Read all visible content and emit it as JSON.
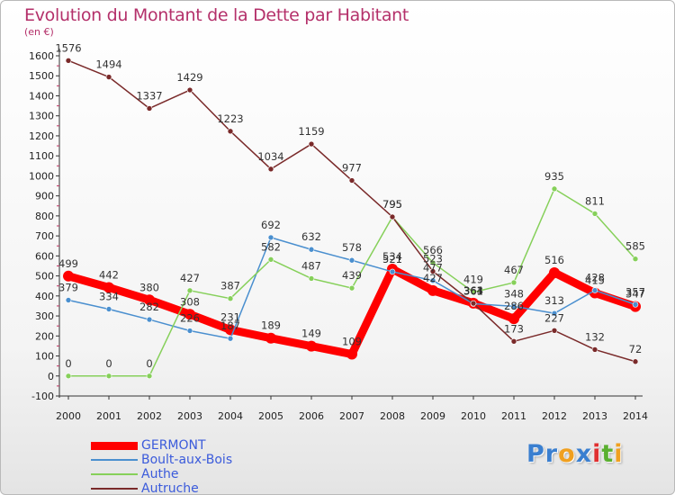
{
  "title": "Evolution du Montant de la Dette par Habitant",
  "unit_label": "(en €)",
  "logo": {
    "text": "Proxiti",
    "letters": [
      {
        "ch": "P",
        "color": "#3a7fd0"
      },
      {
        "ch": "r",
        "color": "#3a7fd0"
      },
      {
        "ch": "o",
        "color": "#f0a020"
      },
      {
        "ch": "x",
        "color": "#3a7fd0"
      },
      {
        "ch": "i",
        "color": "#e03030"
      },
      {
        "ch": "t",
        "color": "#5ab030"
      },
      {
        "ch": "i",
        "color": "#f0a020"
      }
    ]
  },
  "chart_data": {
    "type": "line",
    "x": [
      "2000",
      "2001",
      "2002",
      "2003",
      "2004",
      "2005",
      "2006",
      "2007",
      "2008",
      "2009",
      "2010",
      "2011",
      "2012",
      "2013",
      "2014"
    ],
    "ylim": [
      -100,
      1600
    ],
    "yticks": [
      -100,
      0,
      100,
      200,
      300,
      400,
      500,
      600,
      700,
      800,
      900,
      1000,
      1100,
      1200,
      1300,
      1400,
      1500,
      1600
    ],
    "grid": false,
    "legend_position": "bottom-left",
    "series": [
      {
        "name": "GERMONT",
        "color": "#ff0000",
        "values": [
          499,
          442,
          380,
          308,
          231,
          189,
          149,
          109,
          534,
          427,
          364,
          286,
          516,
          415,
          347
        ]
      },
      {
        "name": "Boult-aux-Bois",
        "color": "#4a8fcf",
        "values": [
          379,
          334,
          282,
          226,
          187,
          692,
          632,
          578,
          521,
          477,
          361,
          348,
          313,
          428,
          357
        ]
      },
      {
        "name": "Authe",
        "color": "#86d05a",
        "values": [
          0,
          0,
          0,
          427,
          387,
          582,
          487,
          439,
          795,
          566,
          419,
          467,
          935,
          811,
          585
        ]
      },
      {
        "name": "Autruche",
        "color": "#7a2a2a",
        "values": [
          1576,
          1494,
          1337,
          1429,
          1223,
          1034,
          1159,
          977,
          795,
          523,
          363,
          173,
          227,
          132,
          72
        ]
      }
    ]
  }
}
